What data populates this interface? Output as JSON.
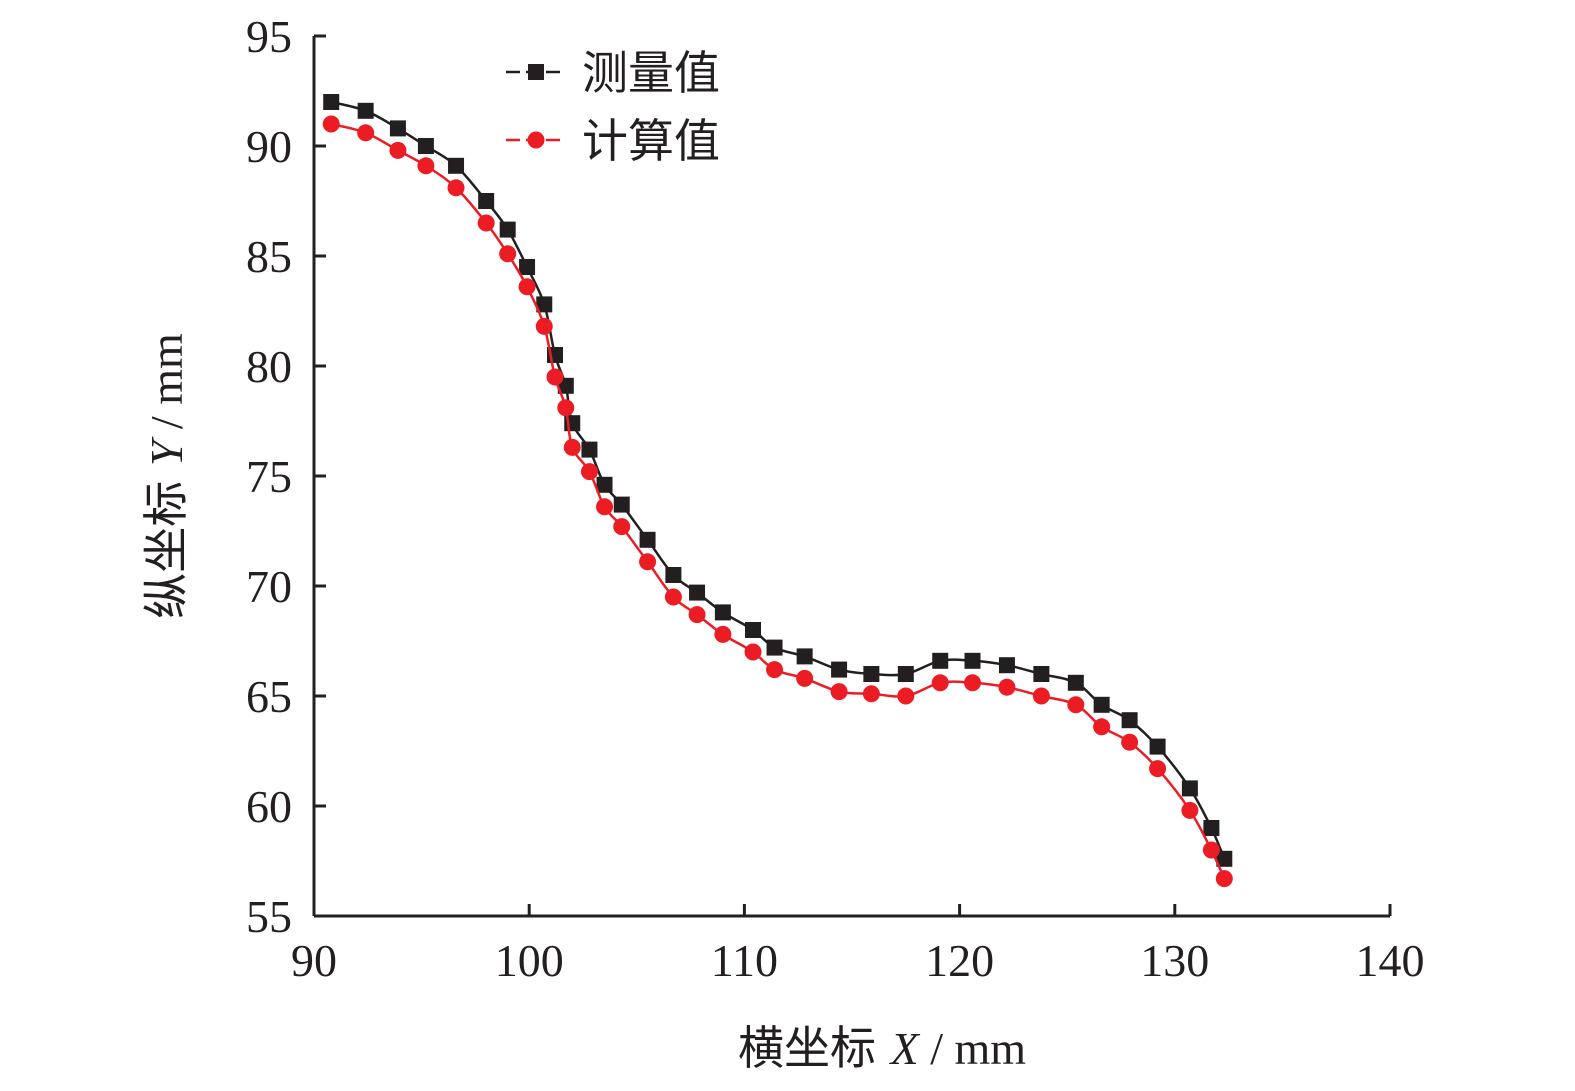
{
  "chart_data": {
    "type": "line",
    "xlabel": {
      "prefix": "横坐标 ",
      "var": "X",
      "unit": " / mm"
    },
    "ylabel": {
      "prefix": "纵坐标 ",
      "var": "Y",
      "unit": " / mm"
    },
    "xlim": [
      90,
      140
    ],
    "ylim": [
      55,
      95
    ],
    "xticks": [
      90,
      100,
      110,
      120,
      130,
      140
    ],
    "yticks": [
      55,
      60,
      65,
      70,
      75,
      80,
      85,
      90,
      95
    ],
    "grid": false,
    "legend_position": "top-left",
    "series": [
      {
        "name": "测量值",
        "marker": "square",
        "color": "#231f20",
        "points": [
          [
            90.8,
            92.0
          ],
          [
            92.4,
            91.6
          ],
          [
            93.9,
            90.8
          ],
          [
            95.2,
            90.0
          ],
          [
            96.6,
            89.1
          ],
          [
            98.0,
            87.5
          ],
          [
            99.0,
            86.2
          ],
          [
            99.9,
            84.5
          ],
          [
            100.7,
            82.8
          ],
          [
            101.2,
            80.5
          ],
          [
            101.7,
            79.1
          ],
          [
            102.0,
            77.4
          ],
          [
            102.8,
            76.2
          ],
          [
            103.5,
            74.6
          ],
          [
            104.3,
            73.7
          ],
          [
            105.5,
            72.1
          ],
          [
            106.7,
            70.5
          ],
          [
            107.8,
            69.7
          ],
          [
            109.0,
            68.8
          ],
          [
            110.4,
            68.0
          ],
          [
            111.4,
            67.2
          ],
          [
            112.8,
            66.8
          ],
          [
            114.4,
            66.2
          ],
          [
            115.9,
            66.0
          ],
          [
            117.5,
            66.0
          ],
          [
            119.1,
            66.6
          ],
          [
            120.6,
            66.6
          ],
          [
            122.2,
            66.4
          ],
          [
            123.8,
            66.0
          ],
          [
            125.4,
            65.6
          ],
          [
            126.6,
            64.6
          ],
          [
            127.9,
            63.9
          ],
          [
            129.2,
            62.7
          ],
          [
            130.7,
            60.8
          ],
          [
            131.7,
            59.0
          ],
          [
            132.3,
            57.6
          ]
        ]
      },
      {
        "name": "计算值",
        "marker": "circle",
        "color": "#ec1c24",
        "points": [
          [
            90.8,
            91.0
          ],
          [
            92.4,
            90.6
          ],
          [
            93.9,
            89.8
          ],
          [
            95.2,
            89.1
          ],
          [
            96.6,
            88.1
          ],
          [
            98.0,
            86.5
          ],
          [
            99.0,
            85.1
          ],
          [
            99.9,
            83.6
          ],
          [
            100.7,
            81.8
          ],
          [
            101.2,
            79.5
          ],
          [
            101.7,
            78.1
          ],
          [
            102.0,
            76.3
          ],
          [
            102.8,
            75.2
          ],
          [
            103.5,
            73.6
          ],
          [
            104.3,
            72.7
          ],
          [
            105.5,
            71.1
          ],
          [
            106.7,
            69.5
          ],
          [
            107.8,
            68.7
          ],
          [
            109.0,
            67.8
          ],
          [
            110.4,
            67.0
          ],
          [
            111.4,
            66.2
          ],
          [
            112.8,
            65.8
          ],
          [
            114.4,
            65.2
          ],
          [
            115.9,
            65.1
          ],
          [
            117.5,
            65.0
          ],
          [
            119.1,
            65.6
          ],
          [
            120.6,
            65.6
          ],
          [
            122.2,
            65.4
          ],
          [
            123.8,
            65.0
          ],
          [
            125.4,
            64.6
          ],
          [
            126.6,
            63.6
          ],
          [
            127.9,
            62.9
          ],
          [
            129.2,
            61.7
          ],
          [
            130.7,
            59.8
          ],
          [
            131.7,
            58.0
          ],
          [
            132.3,
            56.7
          ]
        ]
      }
    ]
  }
}
